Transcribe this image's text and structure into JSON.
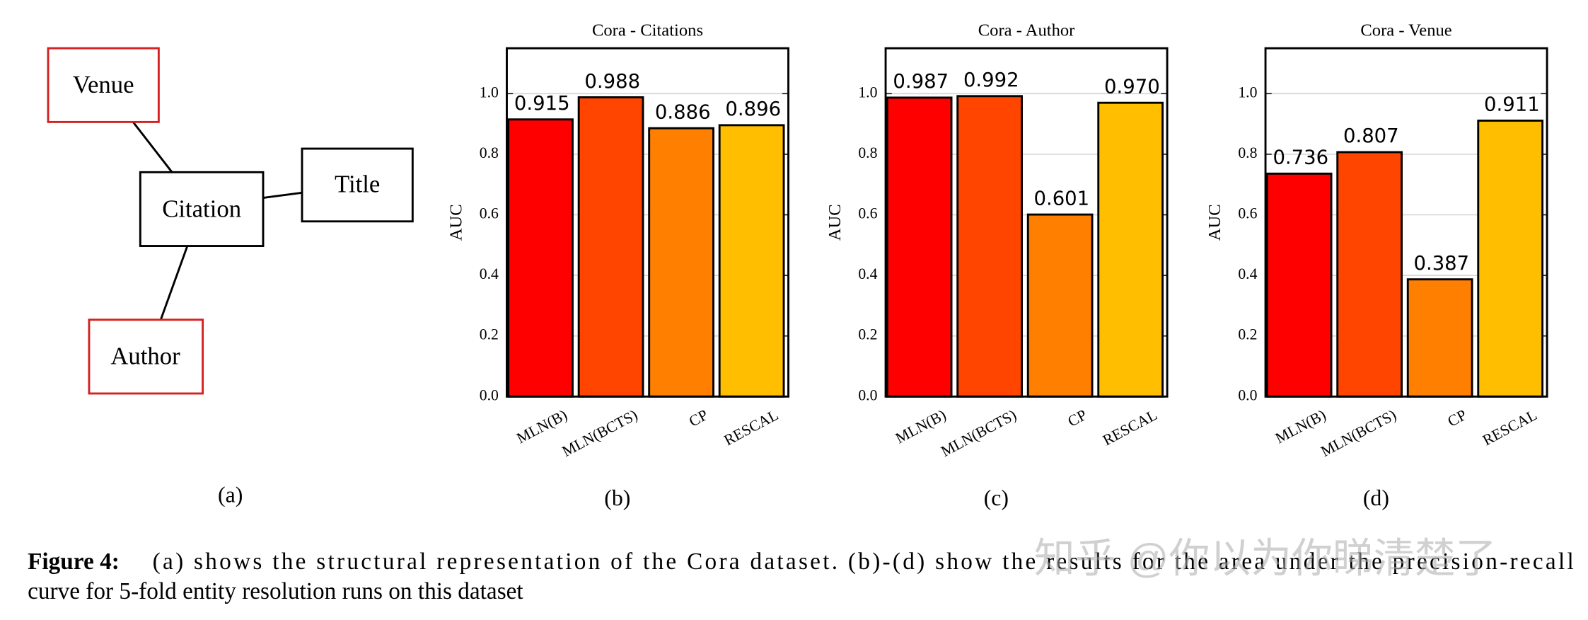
{
  "diagram": {
    "nodes": [
      {
        "label": "Venue"
      },
      {
        "label": "Citation"
      },
      {
        "label": "Title"
      },
      {
        "label": "Author"
      }
    ]
  },
  "subfigure_labels": [
    "(a)",
    "(b)",
    "(c)",
    "(d)"
  ],
  "chart_data": [
    {
      "type": "bar",
      "title": "Cora - Citations",
      "ylabel": "AUC",
      "categories": [
        "MLN(B)",
        "MLN(BCTS)",
        "CP",
        "RESCAL"
      ],
      "values": [
        0.915,
        0.988,
        0.886,
        0.896
      ],
      "value_labels": [
        "0.915",
        "0.988",
        "0.886",
        "0.896"
      ],
      "colors": [
        "#ff0000",
        "#ff4500",
        "#ff7f00",
        "#ffbf00"
      ],
      "ylim": [
        0,
        1.15
      ],
      "yticks": [
        {
          "value": 0,
          "label": "0.0"
        },
        0.2,
        0.4,
        0.6,
        0.8,
        {
          "value": 1,
          "label": "1.0"
        }
      ],
      "grid": true
    },
    {
      "type": "bar",
      "title": "Cora - Author",
      "ylabel": "AUC",
      "categories": [
        "MLN(B)",
        "MLN(BCTS)",
        "CP",
        "RESCAL"
      ],
      "values": [
        0.987,
        0.992,
        0.601,
        0.97
      ],
      "value_labels": [
        "0.987",
        "0.992",
        "0.601",
        "0.970"
      ],
      "colors": [
        "#ff0000",
        "#ff4500",
        "#ff7f00",
        "#ffbf00"
      ],
      "ylim": [
        0,
        1.15
      ],
      "yticks": [
        {
          "value": 0,
          "label": "0.0"
        },
        0.2,
        0.4,
        0.6,
        0.8,
        {
          "value": 1,
          "label": "1.0"
        }
      ],
      "grid": true
    },
    {
      "type": "bar",
      "title": "Cora - Venue",
      "ylabel": "AUC",
      "categories": [
        "MLN(B)",
        "MLN(BCTS)",
        "CP",
        "RESCAL"
      ],
      "values": [
        0.736,
        0.807,
        0.387,
        0.911
      ],
      "value_labels": [
        "0.736",
        "0.807",
        "0.387",
        "0.911"
      ],
      "colors": [
        "#ff0000",
        "#ff4500",
        "#ff7f00",
        "#ffbf00"
      ],
      "ylim": [
        0,
        1.15
      ],
      "yticks": [
        {
          "value": 0,
          "label": "0.0"
        },
        0.2,
        0.4,
        0.6,
        0.8,
        {
          "value": 1,
          "label": "1.0"
        }
      ],
      "grid": true
    }
  ],
  "caption": {
    "label": "Figure 4:",
    "lines": [
      "(a) shows the structural representation of the Cora dataset.  (b)-(d) show the results for the area under the precision-recall",
      "curve for 5-fold entity resolution runs on this dataset"
    ]
  },
  "watermark": "知乎 @你以为你睇清楚了"
}
